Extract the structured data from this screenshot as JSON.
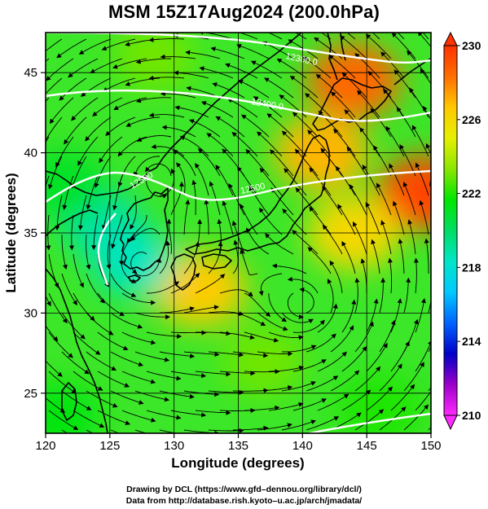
{
  "title": "MSM 15Z17Aug2024 (200.0hPa)",
  "axes": {
    "xlabel": "Longitude (degrees)",
    "ylabel": "Latitude  (degrees)",
    "xlim": [
      120,
      150
    ],
    "ylim": [
      22.5,
      47.5
    ],
    "xticks": [
      120,
      125,
      130,
      135,
      140,
      145,
      150
    ],
    "yticks": [
      25,
      30,
      35,
      40,
      45
    ],
    "grid": true
  },
  "colorbar": {
    "min": 210,
    "max": 230,
    "labels": [
      230,
      226,
      222,
      218,
      214,
      210
    ],
    "colors": [
      "#ff2aff",
      "#9b00c8",
      "#0000c8",
      "#0064ff",
      "#00c8ff",
      "#00e6c8",
      "#00dc64",
      "#00e600",
      "#8ce600",
      "#e6f000",
      "#ffc800",
      "#ff6e00",
      "#ff3200"
    ]
  },
  "contours": [
    {
      "label": "12300.0"
    },
    {
      "label": "12400.0"
    },
    {
      "label": "12500"
    },
    {
      "label": "12500"
    }
  ],
  "credits": {
    "line1": "Drawing by DCL (https://www.gfd–dennou.org/library/dcl/)",
    "line2": "Data from http://database.rish.kyoto–u.ac.jp/arch/jmadata/"
  },
  "field_features": [
    {
      "kind": "warm",
      "lon": 144,
      "lat": 44.5,
      "value": 228.5
    },
    {
      "kind": "warm",
      "lon": 149.5,
      "lat": 37.5,
      "value": 229.5
    },
    {
      "kind": "warm",
      "lon": 141.5,
      "lat": 40,
      "value": 227
    },
    {
      "kind": "warm",
      "lon": 132,
      "lat": 31.5,
      "value": 226.5
    },
    {
      "kind": "warm",
      "lon": 144,
      "lat": 35,
      "value": 226
    },
    {
      "kind": "cool",
      "lon": 124.5,
      "lat": 35.5,
      "value": 219
    },
    {
      "kind": "cool",
      "lon": 126.8,
      "lat": 33.2,
      "value": 218.5
    },
    {
      "kind": "cool",
      "lon": 121.5,
      "lat": 38,
      "value": 221
    },
    {
      "kind": "cool",
      "lon": 121,
      "lat": 23.5,
      "value": 221.5
    },
    {
      "kind": "cool",
      "lon": 146,
      "lat": 24,
      "value": 222
    },
    {
      "kind": "cool",
      "lon": 137,
      "lat": 27,
      "value": 223
    },
    {
      "kind": "cool",
      "lon": 128.5,
      "lat": 46,
      "value": 223
    }
  ],
  "vortices": [
    {
      "lon": 127.3,
      "lat": 33.0,
      "direction": "cyclonic"
    },
    {
      "lon": 140.2,
      "lat": 30.5,
      "direction": "cyclonic"
    },
    {
      "lon": 128.8,
      "lat": 38.7,
      "direction": "cyclonic"
    }
  ]
}
